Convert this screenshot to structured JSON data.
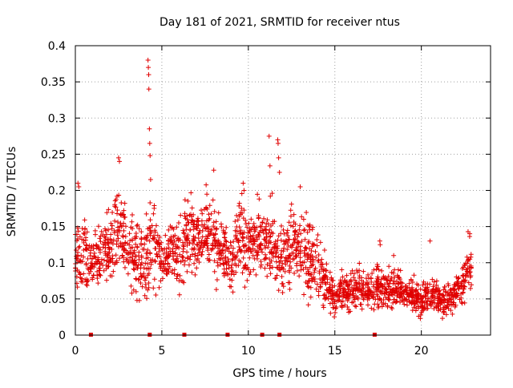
{
  "chart_data": {
    "type": "scatter",
    "title": "Day 181 of 2021, SRMTID for receiver ntus",
    "xlabel": "GPS time / hours",
    "ylabel": "SRMTID / TECUs",
    "xlim": [
      0,
      24
    ],
    "ylim": [
      0,
      0.4
    ],
    "xticks": [
      0,
      5,
      10,
      15,
      20
    ],
    "xtick_labels": [
      "0",
      "5",
      "10",
      "15",
      "20"
    ],
    "yticks": [
      0,
      0.05,
      0.1,
      0.15,
      0.2,
      0.25,
      0.3,
      0.35,
      0.4
    ],
    "ytick_labels": [
      "0",
      "0.05",
      "0.1",
      "0.15",
      "0.2",
      "0.25",
      "0.3",
      "0.35",
      "0.4"
    ],
    "grid": true,
    "marker_color": "#e00000",
    "series": [
      {
        "name": "SRMTID",
        "marker": "plus",
        "trend": [
          [
            0.0,
            0.1,
            0.025
          ],
          [
            0.5,
            0.12,
            0.035
          ],
          [
            1.0,
            0.1,
            0.02
          ],
          [
            1.5,
            0.115,
            0.03
          ],
          [
            2.0,
            0.12,
            0.03
          ],
          [
            2.5,
            0.15,
            0.04
          ],
          [
            3.0,
            0.12,
            0.03
          ],
          [
            3.5,
            0.11,
            0.03
          ],
          [
            4.0,
            0.1,
            0.03
          ],
          [
            4.5,
            0.13,
            0.04
          ],
          [
            5.0,
            0.1,
            0.025
          ],
          [
            5.5,
            0.12,
            0.03
          ],
          [
            6.0,
            0.11,
            0.03
          ],
          [
            6.5,
            0.14,
            0.03
          ],
          [
            7.0,
            0.13,
            0.03
          ],
          [
            7.5,
            0.15,
            0.03
          ],
          [
            8.0,
            0.13,
            0.035
          ],
          [
            8.5,
            0.11,
            0.03
          ],
          [
            9.0,
            0.1,
            0.025
          ],
          [
            9.5,
            0.14,
            0.035
          ],
          [
            10.0,
            0.12,
            0.03
          ],
          [
            10.5,
            0.14,
            0.03
          ],
          [
            11.0,
            0.13,
            0.03
          ],
          [
            11.5,
            0.12,
            0.035
          ],
          [
            12.0,
            0.1,
            0.03
          ],
          [
            12.5,
            0.13,
            0.035
          ],
          [
            13.0,
            0.12,
            0.035
          ],
          [
            13.5,
            0.11,
            0.03
          ],
          [
            14.0,
            0.09,
            0.03
          ],
          [
            14.5,
            0.07,
            0.02
          ],
          [
            15.0,
            0.05,
            0.015
          ],
          [
            15.5,
            0.06,
            0.015
          ],
          [
            16.0,
            0.06,
            0.015
          ],
          [
            16.5,
            0.07,
            0.02
          ],
          [
            17.0,
            0.06,
            0.015
          ],
          [
            17.5,
            0.07,
            0.02
          ],
          [
            18.0,
            0.06,
            0.015
          ],
          [
            18.5,
            0.07,
            0.02
          ],
          [
            19.0,
            0.06,
            0.015
          ],
          [
            19.5,
            0.055,
            0.015
          ],
          [
            20.0,
            0.05,
            0.015
          ],
          [
            20.5,
            0.055,
            0.015
          ],
          [
            21.0,
            0.05,
            0.015
          ],
          [
            21.5,
            0.05,
            0.015
          ],
          [
            22.0,
            0.06,
            0.015
          ],
          [
            22.5,
            0.08,
            0.02
          ],
          [
            22.9,
            0.1,
            0.02
          ]
        ],
        "points_per_hour": 90,
        "outliers": [
          [
            0.15,
            0.21
          ],
          [
            0.2,
            0.205
          ],
          [
            2.5,
            0.245
          ],
          [
            2.55,
            0.24
          ],
          [
            4.2,
            0.38
          ],
          [
            4.22,
            0.37
          ],
          [
            4.24,
            0.36
          ],
          [
            4.25,
            0.34
          ],
          [
            4.28,
            0.285
          ],
          [
            4.3,
            0.265
          ],
          [
            4.32,
            0.248
          ],
          [
            4.35,
            0.215
          ],
          [
            8.0,
            0.228
          ],
          [
            9.7,
            0.21
          ],
          [
            9.75,
            0.2
          ],
          [
            11.2,
            0.275
          ],
          [
            11.25,
            0.234
          ],
          [
            11.7,
            0.27
          ],
          [
            11.72,
            0.265
          ],
          [
            11.75,
            0.245
          ],
          [
            11.8,
            0.225
          ],
          [
            13.0,
            0.205
          ],
          [
            17.6,
            0.13
          ],
          [
            17.62,
            0.125
          ],
          [
            18.4,
            0.11
          ],
          [
            20.5,
            0.13
          ],
          [
            22.7,
            0.143
          ],
          [
            22.8,
            0.14
          ]
        ],
        "zero_markers": [
          0.9,
          4.3,
          6.3,
          8.8,
          10.8,
          11.8,
          17.3
        ]
      }
    ]
  }
}
